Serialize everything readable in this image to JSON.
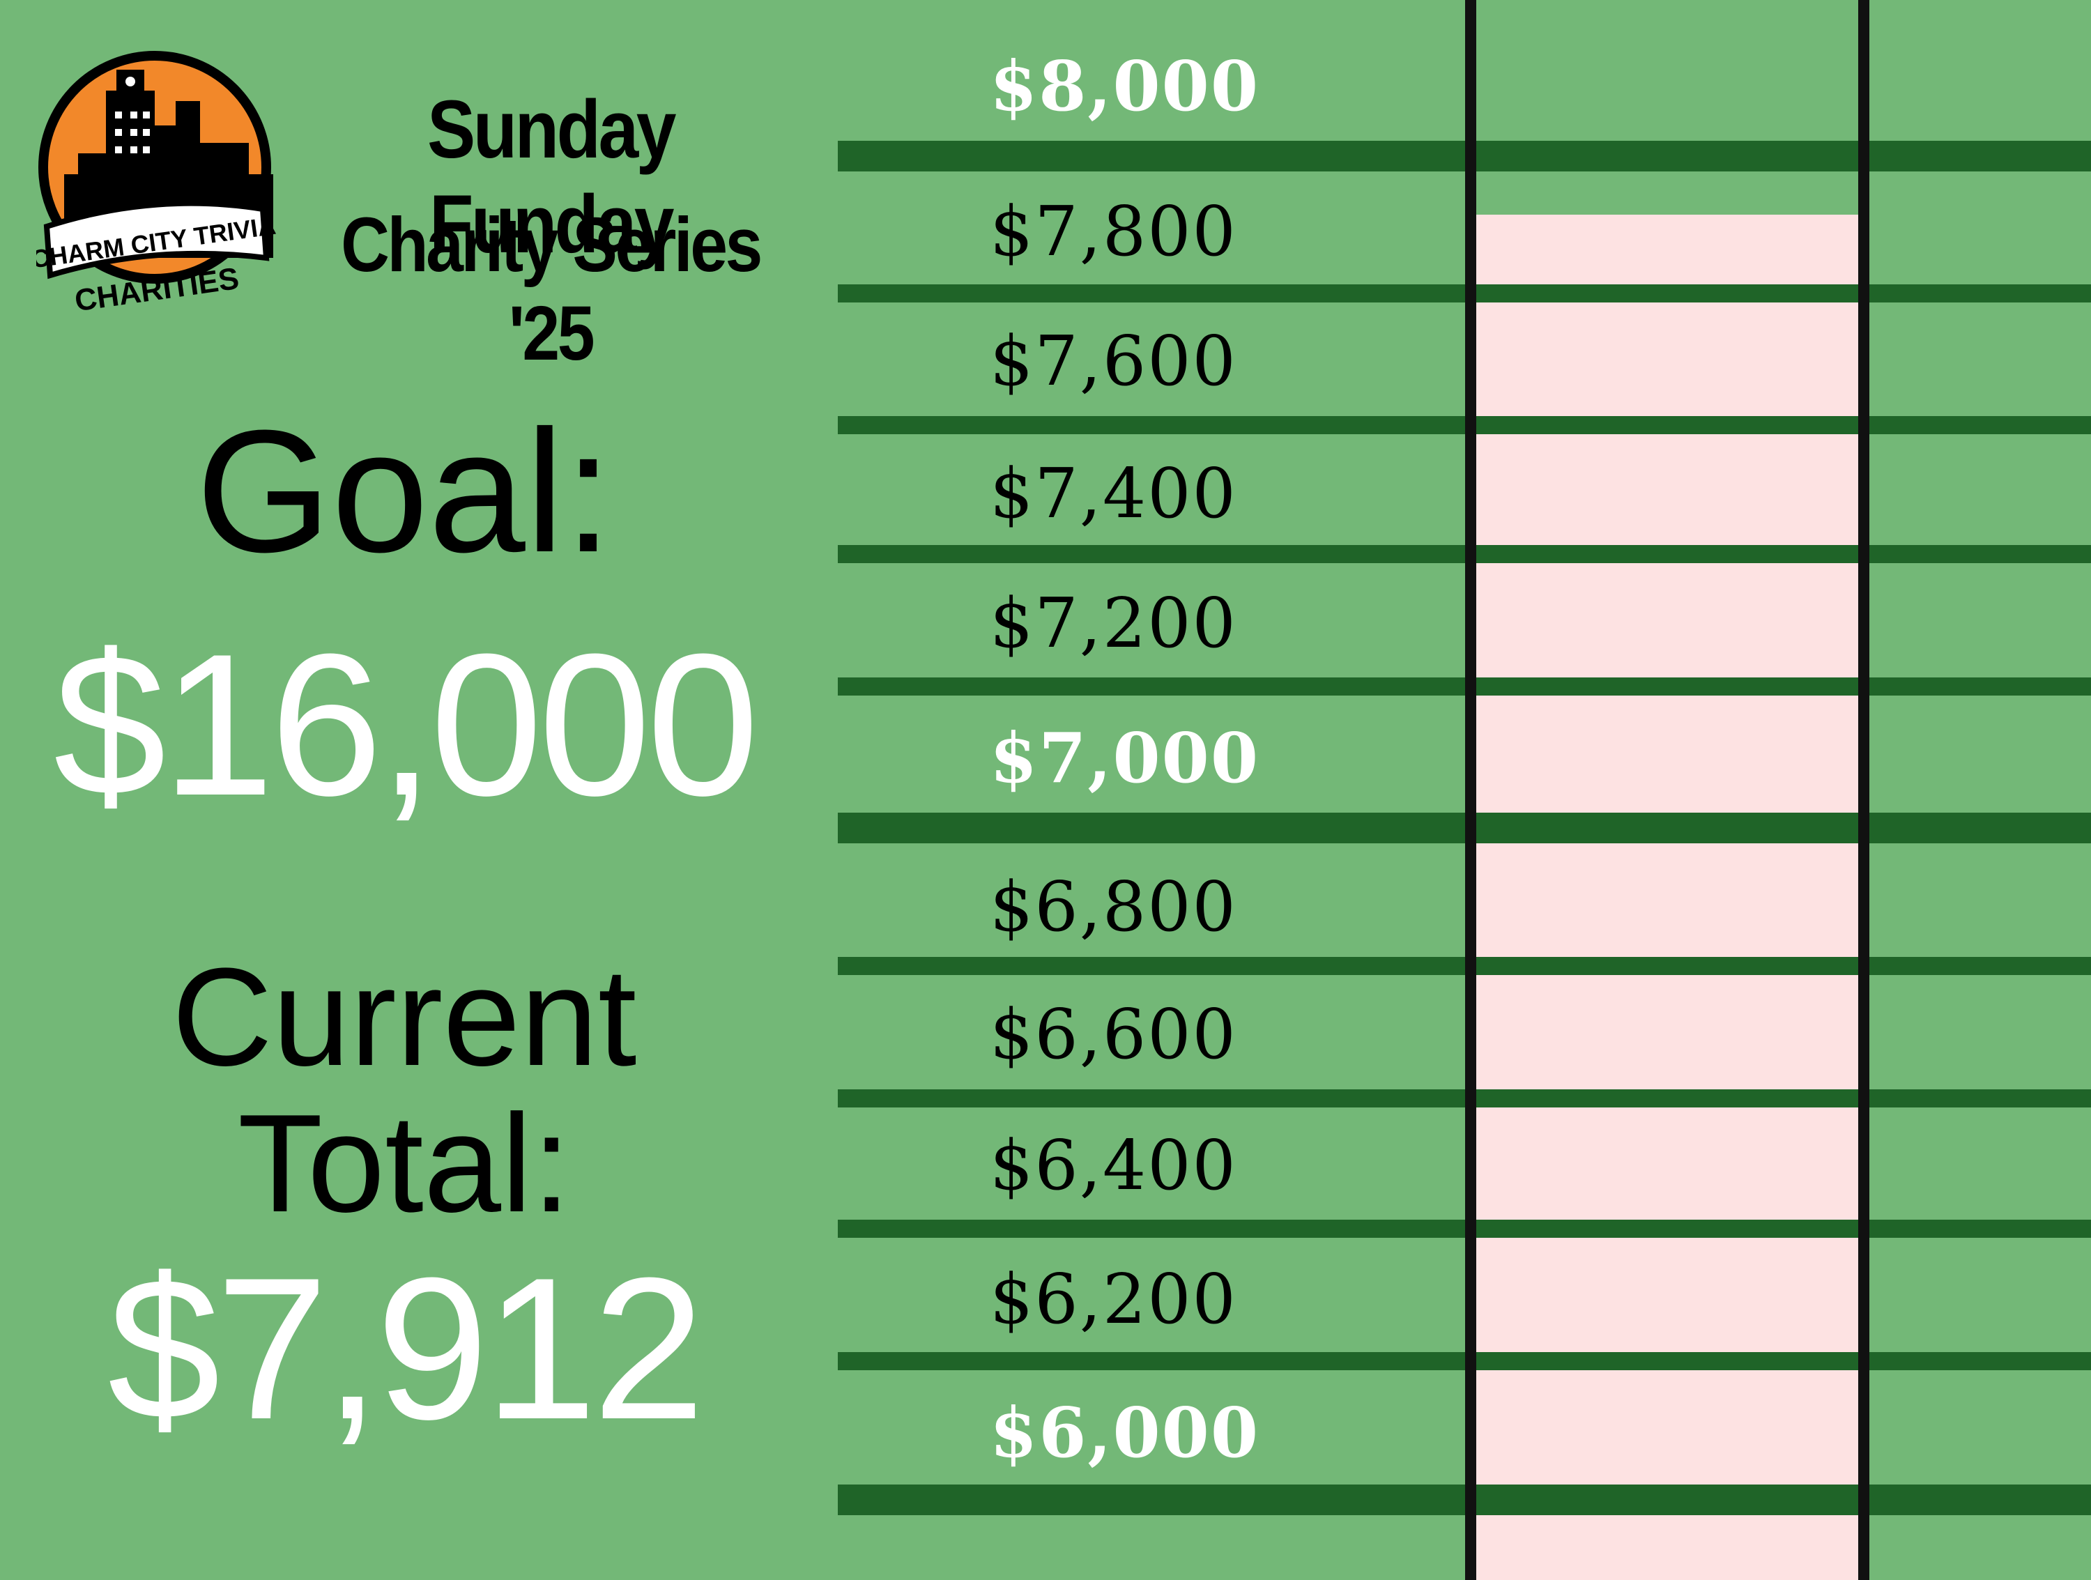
{
  "logo": {
    "banner_text": "CHARM CITY TRIVIA",
    "sub_text": "CHARITIES",
    "colors": {
      "orange": "#f2882a",
      "black": "#000000",
      "white": "#ffffff"
    }
  },
  "title": {
    "line1": "Sunday Funday",
    "line2": "Charity Series '25"
  },
  "goal": {
    "label": "Goal:",
    "value": "$16,000"
  },
  "current": {
    "label_line1": "Current",
    "label_line2": "Total:",
    "value": "$7,912"
  },
  "scale": {
    "labels": [
      "$8,000",
      "$7,800",
      "$7,600",
      "$7,400",
      "$7,200",
      "$7,000",
      "$6,800",
      "$6,600",
      "$6,400",
      "$6,200",
      "$6,000"
    ]
  },
  "progress": {
    "filled_up_to": 7912,
    "fill_color": "#fde2e2"
  },
  "colors": {
    "background": "#73b877",
    "bar": "#1f6428",
    "tube_border": "#111111"
  }
}
